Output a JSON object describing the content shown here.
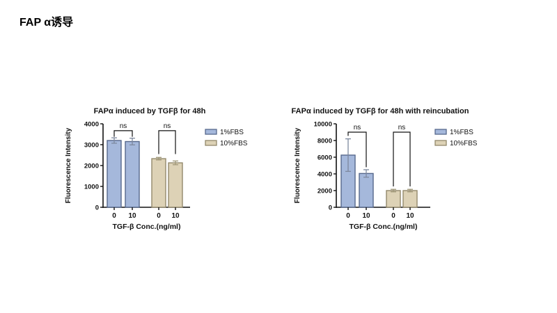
{
  "slide": {
    "title": "FAP α诱导",
    "background": "#ffffff"
  },
  "colors": {
    "axis": "#111111",
    "text": "#111111"
  },
  "chart_data": [
    {
      "type": "bar",
      "title": "FAPα induced by TGFβ for 48h",
      "xlabel": "TGF-β Conc.(ng/ml)",
      "ylabel": "Fluorescence Intensity",
      "ylim": [
        0,
        4000
      ],
      "ytick_step": 1000,
      "ytick_labels": [
        "0",
        "1000",
        "2000",
        "3000",
        "4000"
      ],
      "x_tick_labels": [
        "0",
        "10",
        "0",
        "10"
      ],
      "grid": false,
      "legend_position": "right",
      "series": [
        {
          "name": "1%FBS",
          "fill": "#a5b8db",
          "stroke": "#56688c",
          "error_color": "#7d889e"
        },
        {
          "name": "10%FBS",
          "fill": "#ddd2b6",
          "stroke": "#93896b",
          "error_color": "#a09879"
        }
      ],
      "bars": [
        {
          "x": "0",
          "series": "1%FBS",
          "value": 3200,
          "error": 130
        },
        {
          "x": "10",
          "series": "1%FBS",
          "value": 3150,
          "error": 160
        },
        {
          "x": "0",
          "series": "10%FBS",
          "value": 2330,
          "error": 60
        },
        {
          "x": "10",
          "series": "10%FBS",
          "value": 2130,
          "error": 90
        }
      ],
      "annotations": [
        {
          "label": "ns",
          "from_bar": 0,
          "to_bar": 1,
          "top_value": 3670,
          "left_drop_value": 3380,
          "right_drop_value": 3380
        },
        {
          "label": "ns",
          "from_bar": 2,
          "to_bar": 3,
          "top_value": 3670,
          "left_drop_value": 2550,
          "right_drop_value": 2550
        }
      ]
    },
    {
      "type": "bar",
      "title": "FAPα induced by TGFβ for 48h with reincubation",
      "xlabel": "TGF-β Conc.(ng/ml)",
      "ylabel": "Fluorescence Intensity",
      "ylim": [
        0,
        10000
      ],
      "ytick_step": 2000,
      "ytick_labels": [
        "0",
        "2000",
        "4000",
        "6000",
        "8000",
        "10000"
      ],
      "x_tick_labels": [
        "0",
        "10",
        "0",
        "10"
      ],
      "grid": false,
      "legend_position": "right",
      "series": [
        {
          "name": "1%FBS",
          "fill": "#a5b8db",
          "stroke": "#56688c",
          "error_color": "#7d889e"
        },
        {
          "name": "10%FBS",
          "fill": "#ddd2b6",
          "stroke": "#93896b",
          "error_color": "#a09879"
        }
      ],
      "bars": [
        {
          "x": "0",
          "series": "1%FBS",
          "value": 6250,
          "error": 1950
        },
        {
          "x": "10",
          "series": "1%FBS",
          "value": 4050,
          "error": 450
        },
        {
          "x": "0",
          "series": "10%FBS",
          "value": 2000,
          "error": 150
        },
        {
          "x": "10",
          "series": "10%FBS",
          "value": 2000,
          "error": 150
        }
      ],
      "annotations": [
        {
          "label": "ns",
          "from_bar": 0,
          "to_bar": 1,
          "top_value": 9000,
          "left_drop_value": 8550,
          "right_drop_value": 4800
        },
        {
          "label": "ns",
          "from_bar": 2,
          "to_bar": 3,
          "top_value": 9000,
          "left_drop_value": 2500,
          "right_drop_value": 2500
        }
      ]
    }
  ]
}
